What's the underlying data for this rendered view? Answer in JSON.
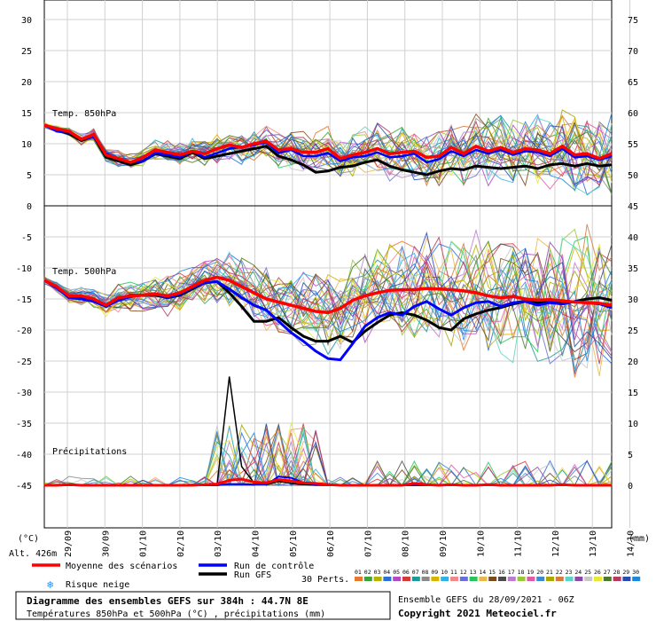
{
  "chart_data": {
    "type": "line",
    "title": "Diagramme des ensembles GEFS sur 384h : 44.7N 8E",
    "subtitle": "Températures 850hPa et 500hPa (°C) , précipitations (mm)",
    "dates": [
      "29/09",
      "30/09",
      "01/10",
      "02/10",
      "03/10",
      "04/10",
      "05/10",
      "06/10",
      "07/10",
      "08/10",
      "09/10",
      "10/10",
      "11/10",
      "12/10",
      "13/10",
      "14/10"
    ],
    "left_ticks": [
      "30",
      "25",
      "20",
      "15",
      "10",
      "5",
      "0",
      "-5",
      "-10",
      "-15",
      "-20",
      "-25",
      "-30",
      "-35",
      "-40",
      "-45"
    ],
    "right_ticks": [
      "75",
      "70",
      "65",
      "60",
      "55",
      "50",
      "45",
      "40",
      "35",
      "30",
      "25",
      "20",
      "15",
      "10",
      "5",
      "0"
    ],
    "left_unit": "(°C)",
    "right_unit": "(mm)",
    "altitude": "Alt. 426m",
    "panel_labels": {
      "t850": "Temp. 850hPa",
      "t500": "Temp. 500hPa",
      "precip": "Précipitations"
    },
    "mean_850": [
      13,
      12.4,
      12,
      10.7,
      11.5,
      8.2,
      7.6,
      7,
      7.8,
      9,
      8.6,
      8.2,
      8.8,
      8.4,
      9.2,
      9.8,
      9.4,
      10,
      10.4,
      9,
      9.2,
      8.6,
      8.6,
      9.2,
      7.6,
      8.2,
      8.6,
      9.2,
      8.4,
      8.6,
      8.8,
      7.8,
      8,
      9.4,
      8.4,
      9.6,
      8.8,
      9.4,
      8.6,
      9.2,
      9,
      8.4,
      9.6,
      8.2,
      8.4,
      7.6,
      8.4
    ],
    "control_850": [
      13,
      12,
      11.8,
      10.8,
      11,
      8.5,
      7.5,
      7,
      7.2,
      8.5,
      8.2,
      7.8,
      8.8,
      7.8,
      8.5,
      9.2,
      9.5,
      9.8,
      10.2,
      8.5,
      9,
      8,
      8,
      8.5,
      7.2,
      7.8,
      8,
      8.6,
      7.8,
      8,
      8.4,
      7,
      7.5,
      8.8,
      8,
      9,
      8.4,
      9,
      8.2,
      8.8,
      8.6,
      8,
      9.2,
      7.8,
      8,
      7.4,
      8
    ],
    "gfs_850": [
      13,
      12.2,
      11.6,
      10.5,
      11.2,
      7.8,
      7.2,
      6.6,
      7.2,
      8.4,
      8,
      7.6,
      8.6,
      7.6,
      8,
      8.4,
      8.8,
      9.2,
      9.6,
      8,
      7.4,
      6.6,
      5.4,
      5.6,
      6.2,
      6.4,
      7,
      7.4,
      6.4,
      5.8,
      5.4,
      5,
      5.6,
      6,
      5.8,
      6.4,
      6.2,
      6,
      6.2,
      6.4,
      6,
      6.6,
      6.8,
      6.4,
      6.8,
      6.4,
      6.6
    ],
    "mean_500": [
      -12,
      -13,
      -14.5,
      -14.5,
      -15,
      -16,
      -14.8,
      -14.5,
      -14.4,
      -14.2,
      -14.5,
      -14,
      -13,
      -12,
      -11.5,
      -12,
      -13,
      -14,
      -15,
      -15.5,
      -16,
      -16.5,
      -17,
      -17.2,
      -16.5,
      -15.2,
      -14.5,
      -14,
      -13.6,
      -13.5,
      -13.5,
      -13.3,
      -13.4,
      -13.5,
      -13.7,
      -14,
      -14.5,
      -14.8,
      -14.6,
      -15,
      -15.2,
      -15.1,
      -15.3,
      -15.5,
      -15.6,
      -15.7,
      -16
    ],
    "control_500": [
      -12,
      -13.2,
      -14.8,
      -15,
      -15.4,
      -16.2,
      -15.2,
      -14.6,
      -14.4,
      -14.2,
      -14.8,
      -14.2,
      -13.2,
      -12.4,
      -12.2,
      -13.4,
      -14.8,
      -16,
      -16.8,
      -18.6,
      -20.4,
      -21.8,
      -23.4,
      -24.6,
      -24.8,
      -22.2,
      -19.4,
      -18,
      -17.2,
      -17.6,
      -16.2,
      -15.4,
      -16.6,
      -17.6,
      -16.4,
      -15.6,
      -15.4,
      -16.2,
      -15.6,
      -15.4,
      -16,
      -15.6,
      -15.8,
      -15.4,
      -15.6,
      -15.8,
      -16.4
    ],
    "gfs_500": [
      -12,
      -13,
      -14.6,
      -14.8,
      -15,
      -16.2,
      -15,
      -14.4,
      -14.4,
      -14.4,
      -14.8,
      -14.4,
      -13.4,
      -12.4,
      -12.2,
      -14,
      -16.2,
      -18.6,
      -18.6,
      -18,
      -19.6,
      -21,
      -21.8,
      -21.8,
      -21,
      -22,
      -20.2,
      -18.8,
      -17.6,
      -17.2,
      -17.6,
      -18.4,
      -19.6,
      -20,
      -18.2,
      -17.4,
      -16.8,
      -16.4,
      -15.8,
      -15.4,
      -15.6,
      -15.2,
      -15.8,
      -15.4,
      -15,
      -14.8,
      -15.2
    ],
    "mean_precip": [
      0,
      0,
      0.1,
      0,
      0,
      0,
      0,
      0,
      0,
      0,
      0,
      0,
      0,
      0.1,
      0.2,
      0.8,
      1,
      0.5,
      0.4,
      0.9,
      0.7,
      0.4,
      0.3,
      0.1,
      0,
      0,
      0,
      0,
      0,
      0,
      0.3,
      0.1,
      0,
      0.1,
      0,
      0,
      0.1,
      0,
      0,
      0,
      0,
      0,
      0.1,
      0,
      0,
      0,
      0
    ],
    "control_precip": [
      0,
      0,
      0,
      0,
      0,
      0,
      0,
      0,
      0,
      0,
      0,
      0,
      0,
      0,
      0,
      0.2,
      0.2,
      0.1,
      0.1,
      1.4,
      1.2,
      0.4,
      0.1,
      0,
      0,
      0,
      0,
      0,
      0,
      0,
      0,
      0,
      0,
      0,
      0,
      0,
      0,
      0,
      0,
      0,
      0,
      0,
      0,
      0,
      0,
      0,
      0
    ],
    "gfs_precip": [
      0,
      0,
      0,
      0,
      0,
      0,
      0,
      0,
      0,
      0,
      0,
      0,
      0,
      0,
      0,
      17.5,
      3,
      0.4,
      0.1,
      0.6,
      0.3,
      0.1,
      0,
      0,
      0,
      0,
      0,
      0,
      0,
      0,
      0,
      0,
      0,
      0,
      0,
      0,
      0,
      0,
      0,
      0,
      0,
      0,
      0,
      0,
      0,
      0,
      0
    ],
    "legend": {
      "mean": "Moyenne des scénarios",
      "control": "Run de contrôle",
      "gfs": "Run GFS",
      "snow": "Risque neige",
      "perts": "30 Perts."
    },
    "pert_codes": [
      "01",
      "02",
      "03",
      "04",
      "05",
      "06",
      "07",
      "08",
      "09",
      "10",
      "11",
      "12",
      "13",
      "14",
      "15",
      "16",
      "17",
      "18",
      "19",
      "20",
      "21",
      "22",
      "23",
      "24",
      "25",
      "26",
      "27",
      "28",
      "29",
      "30"
    ],
    "pert_colors": [
      "#e8772e",
      "#3aa63a",
      "#b3b300",
      "#2a6fdb",
      "#b04ac7",
      "#d33a3a",
      "#1a9a9a",
      "#8a8a8a",
      "#d6b400",
      "#2db3e8",
      "#f08a8a",
      "#6c6cd8",
      "#27c45e",
      "#e8b84a",
      "#7a4a1a",
      "#4a4a4a",
      "#c07ad6",
      "#96c83a",
      "#e05aa8",
      "#3a8ad6",
      "#a8a800",
      "#d87a3a",
      "#5ad6c4",
      "#8a4aa8",
      "#c8c8c8",
      "#e8e83a",
      "#4a7a2a",
      "#b83a5a",
      "#2a4ab0",
      "#1a8ae0"
    ],
    "colors": {
      "mean": "#ff0000",
      "control": "#0000ff",
      "gfs": "#000000",
      "snow": "#1e90ff"
    }
  },
  "footer": {
    "title": "Diagramme des ensembles GEFS sur 384h : 44.7N 8E",
    "subtitle": "Températures 850hPa et 500hPa (°C) , précipitations (mm)",
    "run": "Ensemble GEFS du 28/09/2021 - 06Z",
    "copyright": "Copyright 2021 Meteociel.fr"
  }
}
